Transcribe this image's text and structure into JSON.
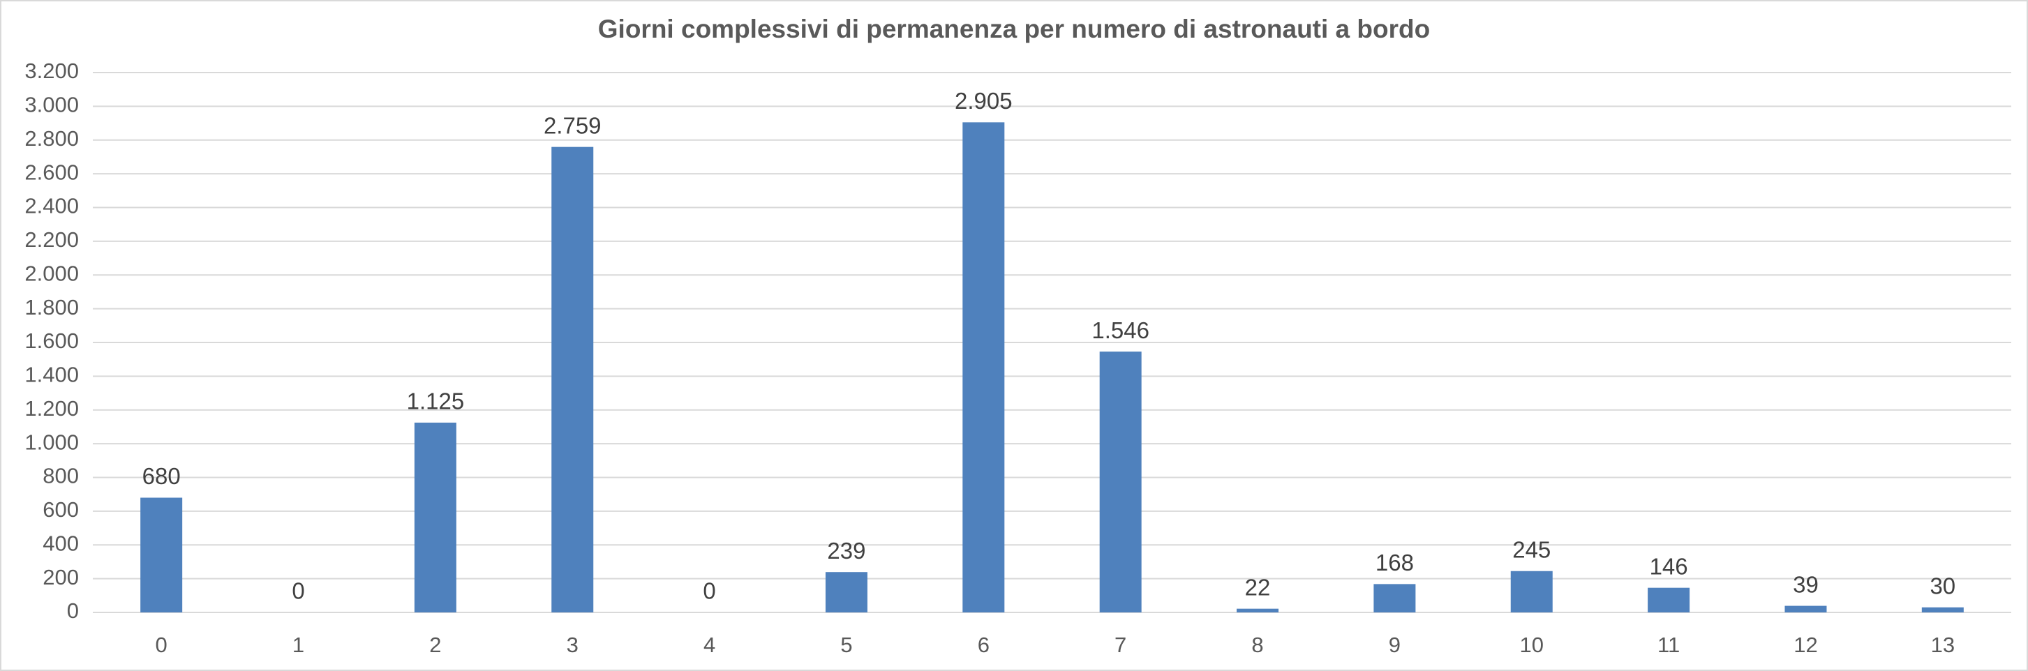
{
  "chart_data": {
    "type": "bar",
    "title": "Giorni complessivi di permanenza per numero di astronauti a bordo",
    "categories": [
      "0",
      "1",
      "2",
      "3",
      "4",
      "5",
      "6",
      "7",
      "8",
      "9",
      "10",
      "11",
      "12",
      "13"
    ],
    "values": [
      680,
      0,
      1125,
      2759,
      0,
      239,
      2905,
      1546,
      22,
      168,
      245,
      146,
      39,
      30
    ],
    "value_labels": [
      "680",
      "0",
      "1.125",
      "2.759",
      "0",
      "239",
      "2.905",
      "1.546",
      "22",
      "168",
      "245",
      "146",
      "39",
      "30"
    ],
    "color": "#4f81bd",
    "ylim": [
      0,
      3200
    ],
    "yticks": [
      0,
      200,
      400,
      600,
      800,
      {
        "value": 1000,
        "label": "1.000"
      },
      {
        "value": 1200,
        "label": "1.200"
      },
      {
        "value": 1400,
        "label": "1.400"
      },
      {
        "value": 1600,
        "label": "1.600"
      },
      {
        "value": 1800,
        "label": "1.800"
      },
      {
        "value": 2000,
        "label": "2.000"
      },
      {
        "value": 2200,
        "label": "2.200"
      },
      {
        "value": 2400,
        "label": "2.400"
      },
      {
        "value": 2600,
        "label": "2.600"
      },
      {
        "value": 2800,
        "label": "2.800"
      },
      {
        "value": 3000,
        "label": "3.000"
      },
      {
        "value": 3200,
        "label": "3.200"
      }
    ],
    "grid": true
  }
}
